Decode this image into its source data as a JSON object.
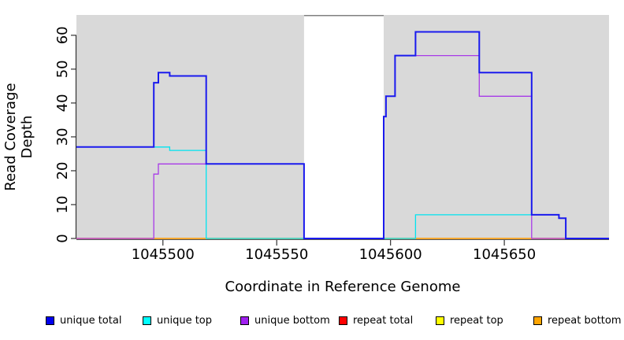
{
  "chart_data": {
    "type": "line",
    "subtype": "step-coverage",
    "title": "",
    "xlabel": "Coordinate in Reference Genome",
    "ylabel": "Read Coverage Depth",
    "xlim": [
      1045462,
      1045696
    ],
    "ylim": [
      0,
      66
    ],
    "x_ticks": [
      1045500,
      1045550,
      1045600,
      1045650
    ],
    "y_ticks": [
      0,
      10,
      20,
      30,
      40,
      50,
      60
    ],
    "grid": false,
    "plot_background": "#d9d9d9",
    "page_background": "#ffffff",
    "axis_color": "#000000",
    "masked_region": {
      "x_start": 1045562,
      "x_end": 1045597,
      "fill": "#ffffff",
      "top_line_color": "#808080"
    },
    "legend_position": "bottom-horizontal",
    "series": [
      {
        "name": "unique total",
        "color": "#1a1aee",
        "z": 6,
        "steps": [
          [
            1045462,
            27
          ],
          [
            1045496,
            46
          ],
          [
            1045498,
            49
          ],
          [
            1045503,
            48
          ],
          [
            1045519,
            22
          ],
          [
            1045562,
            0
          ],
          [
            1045597,
            36
          ],
          [
            1045598,
            42
          ],
          [
            1045602,
            54
          ],
          [
            1045611,
            61
          ],
          [
            1045639,
            49
          ],
          [
            1045662,
            7
          ],
          [
            1045674,
            6
          ],
          [
            1045677,
            0
          ]
        ]
      },
      {
        "name": "unique top",
        "color": "#00e4f0",
        "z": 5,
        "steps": [
          [
            1045462,
            27
          ],
          [
            1045503,
            26
          ],
          [
            1045519,
            0
          ],
          [
            1045611,
            7
          ],
          [
            1045674,
            6
          ],
          [
            1045677,
            0
          ]
        ]
      },
      {
        "name": "unique bottom",
        "color": "#a83ae8",
        "z": 4,
        "steps": [
          [
            1045462,
            0
          ],
          [
            1045496,
            19
          ],
          [
            1045498,
            22
          ],
          [
            1045562,
            0
          ],
          [
            1045597,
            36
          ],
          [
            1045598,
            42
          ],
          [
            1045602,
            54
          ],
          [
            1045639,
            42
          ],
          [
            1045662,
            0
          ]
        ]
      },
      {
        "name": "repeat total",
        "color": "#ee1122",
        "z": 2,
        "steps": [
          [
            1045462,
            0
          ]
        ]
      },
      {
        "name": "repeat top",
        "color": "#ffff00",
        "z": 1,
        "steps": [
          [
            1045462,
            0
          ]
        ]
      },
      {
        "name": "repeat bottom",
        "color": "#ffa500",
        "z": 3,
        "steps": [
          [
            1045462,
            0
          ]
        ]
      }
    ],
    "legend": [
      {
        "label": "unique total",
        "color": "#0000ee"
      },
      {
        "label": "unique top",
        "color": "#00ffff"
      },
      {
        "label": "unique bottom",
        "color": "#a020f0"
      },
      {
        "label": "repeat total",
        "color": "#ff0000"
      },
      {
        "label": "repeat top",
        "color": "#ffff00"
      },
      {
        "label": "repeat bottom",
        "color": "#ffa500"
      }
    ]
  }
}
